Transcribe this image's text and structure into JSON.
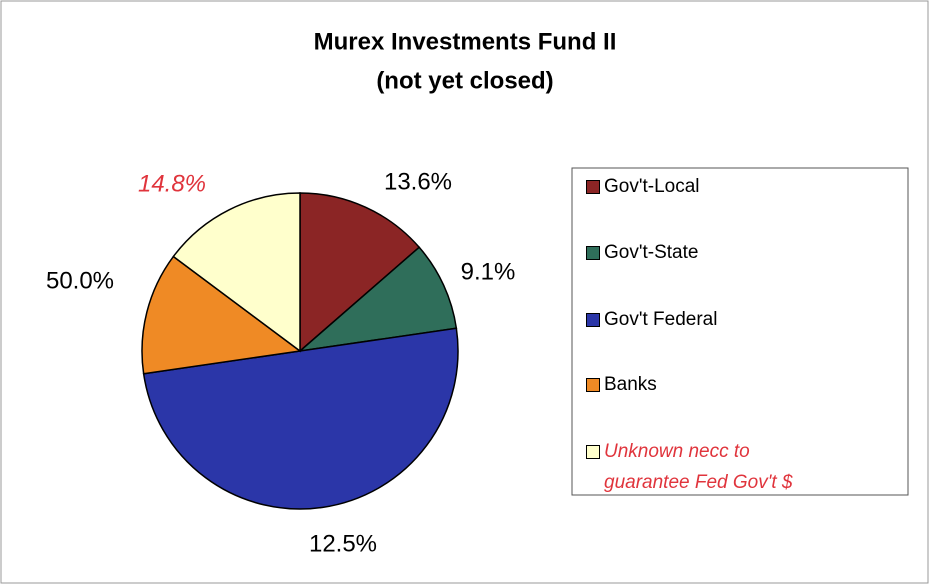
{
  "chart_data": {
    "type": "pie",
    "title": "Murex Investments Fund II",
    "subtitle": "(not yet closed)",
    "categories": [
      "Gov't-Local",
      "Gov't-State",
      "Gov't Federal",
      "Banks",
      "Unknown necc to guarantee Fed Gov't $"
    ],
    "values": [
      13.6,
      9.1,
      50.0,
      12.5,
      14.8
    ],
    "value_labels": [
      "13.6%",
      "9.1%",
      "50.0%",
      "12.5%",
      "14.8%"
    ],
    "colors": [
      "#8b2525",
      "#2f6e5a",
      "#2b36a8",
      "#ef8a25",
      "#ffffcc"
    ],
    "emphasis": {
      "index": 4,
      "color": "#e0343c",
      "italic": true
    },
    "legend": "right"
  }
}
